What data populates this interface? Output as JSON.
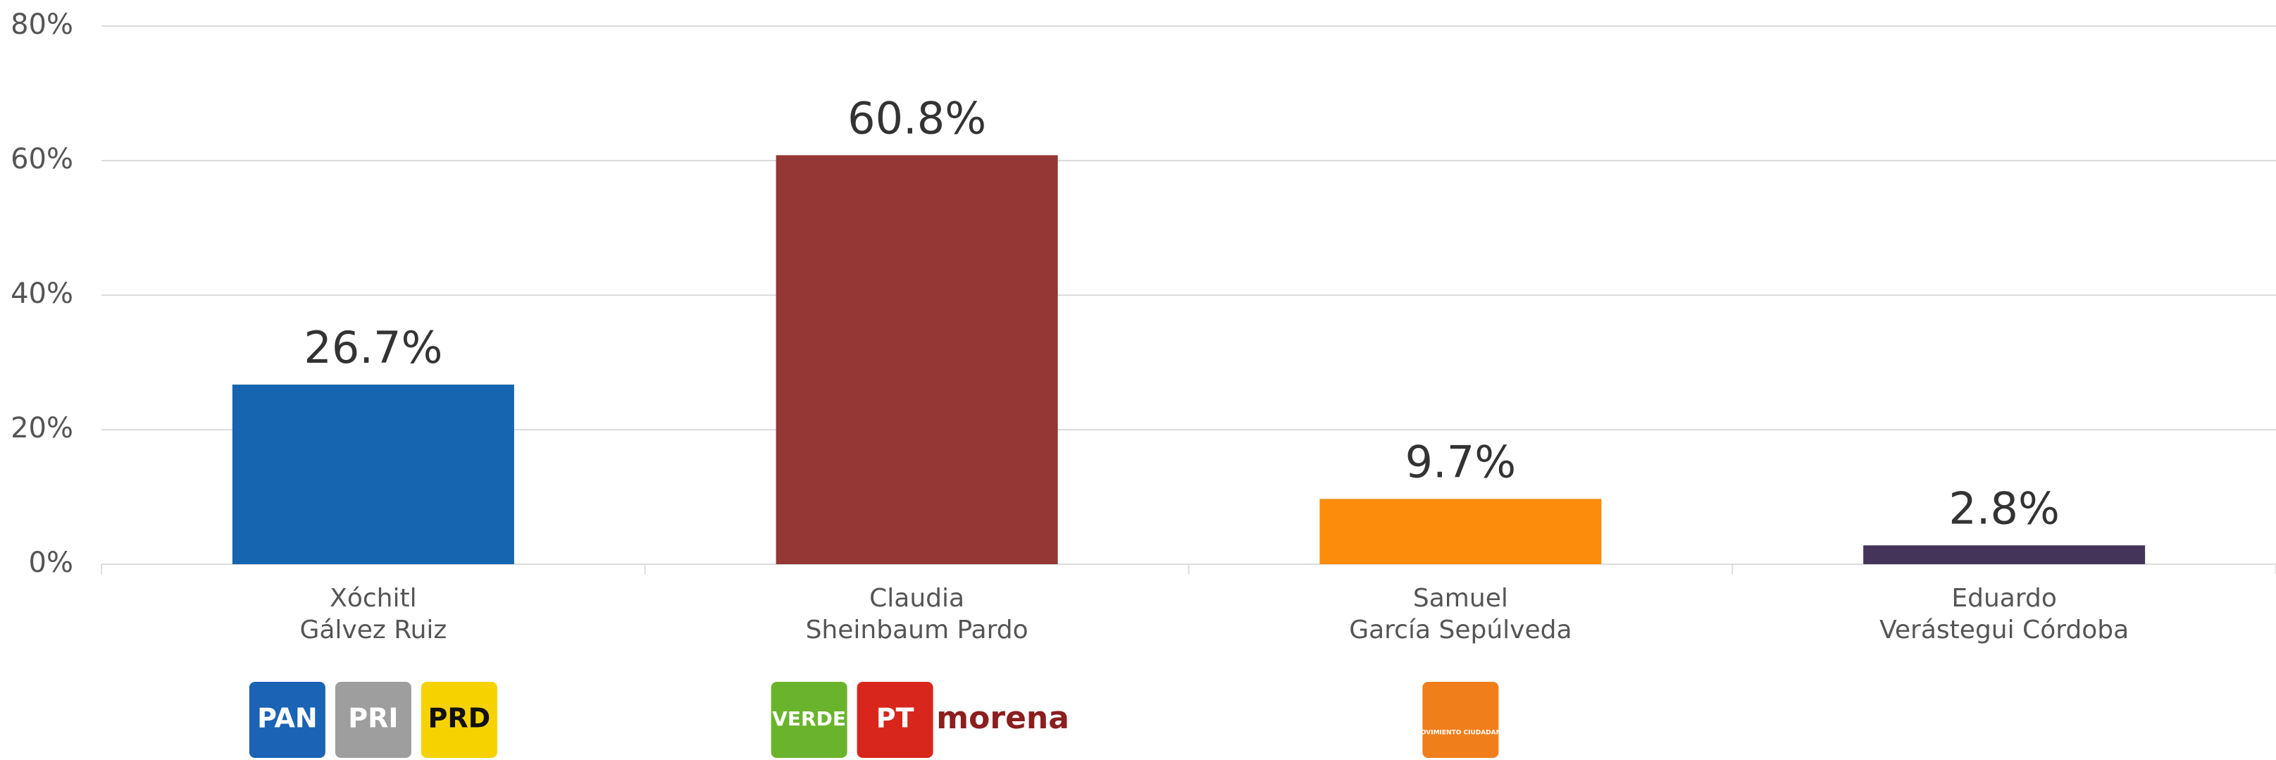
{
  "chart_data": {
    "type": "bar",
    "categories": [
      [
        "Xóchitl",
        "Gálvez Ruiz"
      ],
      [
        "Claudia",
        "Sheinbaum Pardo"
      ],
      [
        "Samuel",
        "García Sepúlveda"
      ],
      [
        "Eduardo",
        "Verástegui Córdoba"
      ]
    ],
    "values": [
      26.7,
      60.8,
      9.7,
      2.8
    ],
    "value_labels": [
      "26.7%",
      "60.8%",
      "9.7%",
      "2.8%"
    ],
    "colors": [
      "#1565b0",
      "#943735",
      "#fb8c0c",
      "#45345a"
    ],
    "ylim": [
      0,
      80
    ],
    "yticks": [
      {
        "value": 0,
        "label": "0%"
      },
      {
        "value": 20,
        "label": "20%"
      },
      {
        "value": 40,
        "label": "40%"
      },
      {
        "value": 60,
        "label": "60%"
      },
      {
        "value": 80,
        "label": "80%"
      }
    ],
    "grid": true,
    "party_logos": [
      [
        {
          "text": "PAN",
          "color": "#1a63b5"
        },
        {
          "text": "PRI",
          "color": "#9e9e9e"
        },
        {
          "text": "PRD",
          "color": "#f6d300"
        }
      ],
      [
        {
          "text": "VERDE",
          "color": "#6ab42d"
        },
        {
          "text": "PT",
          "color": "#d9261c"
        },
        {
          "text": "morena",
          "color": "#8b1e1e"
        }
      ],
      [
        {
          "text": "MOVIMIENTO CIUDADANO",
          "color": "#f07e1b"
        }
      ],
      []
    ]
  }
}
